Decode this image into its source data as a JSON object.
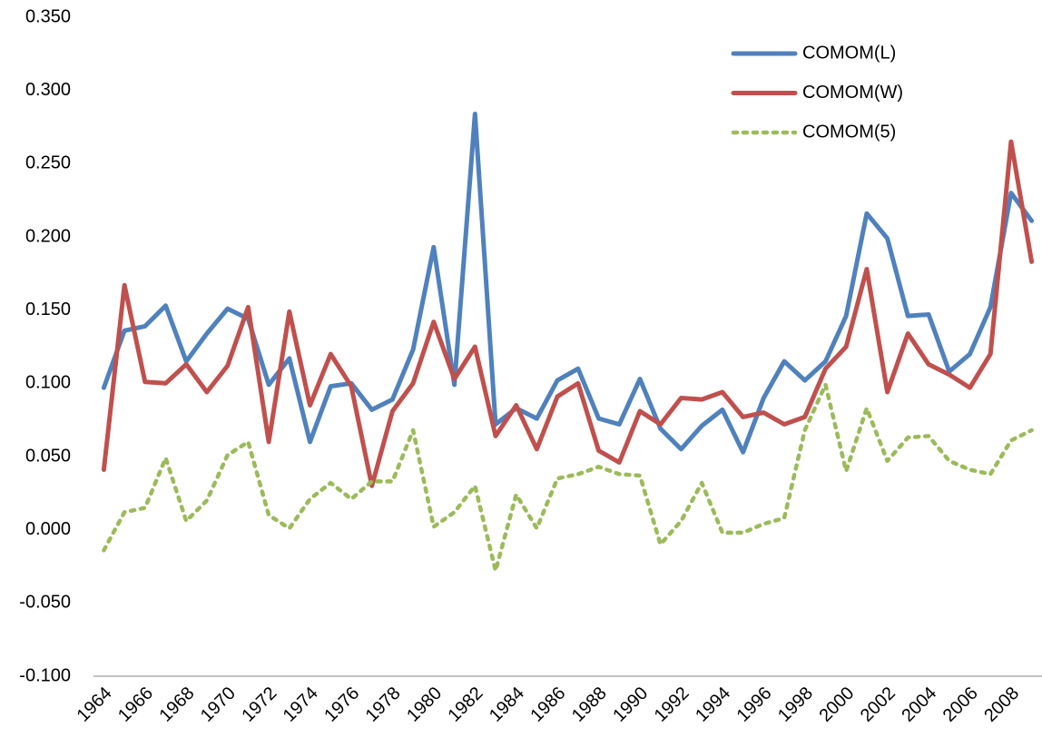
{
  "chart_data": {
    "type": "line",
    "categories": [
      "1964",
      null,
      "1966",
      null,
      "1968",
      null,
      "1970",
      null,
      "1972",
      null,
      "1974",
      null,
      "1976",
      null,
      "1978",
      null,
      "1980",
      null,
      "1982",
      null,
      "1984",
      null,
      "1986",
      null,
      "1988",
      null,
      "1990",
      null,
      "1992",
      null,
      "1994",
      null,
      "1996",
      null,
      "1998",
      null,
      "2000",
      null,
      "2002",
      null,
      "2004",
      null,
      "2006",
      null,
      "2008",
      null
    ],
    "series": [
      {
        "name": "COMOM(L)",
        "color": "#4f81bd",
        "style": "solid",
        "values": [
          0.097,
          0.136,
          0.139,
          0.153,
          0.115,
          0.134,
          0.151,
          0.144,
          0.099,
          0.117,
          0.06,
          0.098,
          0.1,
          0.082,
          0.089,
          0.123,
          0.193,
          0.099,
          0.284,
          0.072,
          0.083,
          0.076,
          0.102,
          0.11,
          0.076,
          0.072,
          0.103,
          0.069,
          0.055,
          0.071,
          0.082,
          0.053,
          0.09,
          0.115,
          0.102,
          0.115,
          0.146,
          0.216,
          0.199,
          0.146,
          0.147,
          0.108,
          0.12,
          0.152,
          0.23,
          0.211
        ]
      },
      {
        "name": "COMOM(W)",
        "color": "#c0504d",
        "style": "solid",
        "values": [
          0.041,
          0.167,
          0.101,
          0.1,
          0.113,
          0.094,
          0.112,
          0.152,
          0.06,
          0.149,
          0.085,
          0.12,
          0.098,
          0.03,
          0.081,
          0.1,
          0.142,
          0.103,
          0.125,
          0.064,
          0.085,
          0.055,
          0.091,
          0.1,
          0.054,
          0.046,
          0.081,
          0.072,
          0.09,
          0.089,
          0.094,
          0.077,
          0.08,
          0.072,
          0.077,
          0.11,
          0.125,
          0.178,
          0.094,
          0.134,
          0.113,
          0.106,
          0.097,
          0.12,
          0.265,
          0.183
        ]
      },
      {
        "name": "COMOM(5)",
        "color": "#9bbb59",
        "style": "dotted",
        "values": [
          -0.014,
          0.012,
          0.015,
          0.049,
          0.006,
          0.02,
          0.051,
          0.06,
          0.01,
          0.001,
          0.021,
          0.032,
          0.021,
          0.033,
          0.033,
          0.068,
          0.002,
          0.012,
          0.03,
          -0.028,
          0.024,
          0.001,
          0.035,
          0.038,
          0.043,
          0.038,
          0.037,
          -0.01,
          0.006,
          0.032,
          -0.002,
          -0.002,
          0.004,
          0.008,
          0.068,
          0.099,
          0.04,
          0.083,
          0.047,
          0.063,
          0.064,
          0.047,
          0.041,
          0.038,
          0.061,
          0.068
        ]
      }
    ],
    "ylim": [
      -0.1,
      0.35
    ],
    "yticks": [
      {
        "value": -0.1,
        "label": "-0.100"
      },
      {
        "value": -0.05,
        "label": "-0.050"
      },
      {
        "value": 0,
        "label": "0.000"
      },
      {
        "value": 0.05,
        "label": "0.050"
      },
      {
        "value": 0.1,
        "label": "0.100"
      },
      {
        "value": 0.15,
        "label": "0.150"
      },
      {
        "value": 0.2,
        "label": "0.200"
      },
      {
        "value": 0.25,
        "label": "0.250"
      },
      {
        "value": 0.3,
        "label": "0.300"
      },
      {
        "value": 0.35,
        "label": "0.350"
      }
    ],
    "grid": false,
    "legend": "top-right"
  }
}
